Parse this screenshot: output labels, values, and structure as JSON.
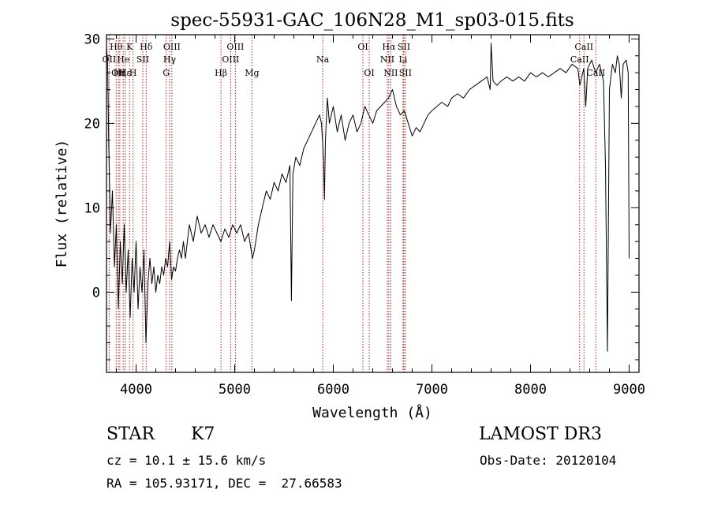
{
  "chart_data": {
    "type": "line",
    "title": "spec-55931-GAC_106N28_M1_sp03-015.fits",
    "xlabel": "Wavelength (Å)",
    "ylabel": "Flux (relative)",
    "xlim": [
      3700,
      9100
    ],
    "ylim": [
      -9.5,
      30.5
    ],
    "x_ticks": [
      4000,
      5000,
      6000,
      7000,
      8000,
      9000
    ],
    "y_ticks": [
      0,
      10,
      20,
      30
    ],
    "grid": false,
    "series": [
      {
        "name": "flux",
        "points": [
          [
            3700,
            29.0
          ],
          [
            3712,
            27.0
          ],
          [
            3722,
            18.0
          ],
          [
            3740,
            7.0
          ],
          [
            3760,
            12.0
          ],
          [
            3780,
            3.0
          ],
          [
            3800,
            8.0
          ],
          [
            3820,
            -2.0
          ],
          [
            3840,
            6.0
          ],
          [
            3860,
            1.0
          ],
          [
            3880,
            8.0
          ],
          [
            3900,
            0.0
          ],
          [
            3920,
            5.0
          ],
          [
            3940,
            -3.0
          ],
          [
            3960,
            4.0
          ],
          [
            3980,
            0.0
          ],
          [
            4000,
            6.0
          ],
          [
            4020,
            -2.0
          ],
          [
            4040,
            3.0
          ],
          [
            4060,
            0.0
          ],
          [
            4080,
            5.0
          ],
          [
            4100,
            -6.0
          ],
          [
            4120,
            1.0
          ],
          [
            4140,
            4.0
          ],
          [
            4160,
            1.0
          ],
          [
            4180,
            3.0
          ],
          [
            4200,
            0.0
          ],
          [
            4220,
            2.0
          ],
          [
            4240,
            1.0
          ],
          [
            4260,
            3.0
          ],
          [
            4280,
            2.0
          ],
          [
            4300,
            4.0
          ],
          [
            4320,
            3.0
          ],
          [
            4340,
            6.0
          ],
          [
            4360,
            1.5
          ],
          [
            4380,
            3.0
          ],
          [
            4400,
            2.5
          ],
          [
            4420,
            4.0
          ],
          [
            4440,
            5.0
          ],
          [
            4460,
            4.0
          ],
          [
            4480,
            6.0
          ],
          [
            4500,
            4.0
          ],
          [
            4540,
            8.0
          ],
          [
            4580,
            6.0
          ],
          [
            4620,
            9.0
          ],
          [
            4660,
            7.0
          ],
          [
            4700,
            8.0
          ],
          [
            4740,
            6.5
          ],
          [
            4780,
            8.0
          ],
          [
            4820,
            7.0
          ],
          [
            4860,
            6.0
          ],
          [
            4900,
            7.5
          ],
          [
            4940,
            6.5
          ],
          [
            4980,
            8.0
          ],
          [
            5020,
            7.0
          ],
          [
            5060,
            8.0
          ],
          [
            5100,
            6.0
          ],
          [
            5140,
            7.0
          ],
          [
            5180,
            4.0
          ],
          [
            5200,
            5.0
          ],
          [
            5240,
            8.0
          ],
          [
            5280,
            10.0
          ],
          [
            5320,
            12.0
          ],
          [
            5360,
            11.0
          ],
          [
            5400,
            13.0
          ],
          [
            5440,
            12.0
          ],
          [
            5480,
            14.0
          ],
          [
            5520,
            13.0
          ],
          [
            5560,
            15.0
          ],
          [
            5575,
            -1.0
          ],
          [
            5590,
            14.0
          ],
          [
            5620,
            16.0
          ],
          [
            5660,
            15.0
          ],
          [
            5700,
            17.0
          ],
          [
            5740,
            18.0
          ],
          [
            5780,
            19.0
          ],
          [
            5820,
            20.0
          ],
          [
            5860,
            21.0
          ],
          [
            5880,
            20.0
          ],
          [
            5900,
            16.0
          ],
          [
            5910,
            11.0
          ],
          [
            5920,
            18.0
          ],
          [
            5940,
            23.0
          ],
          [
            5960,
            20.0
          ],
          [
            6000,
            22.0
          ],
          [
            6040,
            19.0
          ],
          [
            6080,
            21.0
          ],
          [
            6120,
            18.0
          ],
          [
            6160,
            20.0
          ],
          [
            6200,
            21.0
          ],
          [
            6240,
            19.0
          ],
          [
            6280,
            20.0
          ],
          [
            6320,
            22.0
          ],
          [
            6360,
            21.0
          ],
          [
            6400,
            20.0
          ],
          [
            6440,
            21.5
          ],
          [
            6480,
            22.0
          ],
          [
            6520,
            22.5
          ],
          [
            6560,
            23.0
          ],
          [
            6600,
            24.0
          ],
          [
            6640,
            22.0
          ],
          [
            6680,
            21.0
          ],
          [
            6720,
            21.5
          ],
          [
            6760,
            20.0
          ],
          [
            6800,
            18.5
          ],
          [
            6840,
            19.5
          ],
          [
            6880,
            19.0
          ],
          [
            6920,
            20.0
          ],
          [
            6960,
            21.0
          ],
          [
            7000,
            21.5
          ],
          [
            7050,
            22.0
          ],
          [
            7100,
            22.5
          ],
          [
            7160,
            22.0
          ],
          [
            7200,
            23.0
          ],
          [
            7260,
            23.5
          ],
          [
            7320,
            23.0
          ],
          [
            7380,
            24.0
          ],
          [
            7440,
            24.5
          ],
          [
            7500,
            25.0
          ],
          [
            7560,
            25.5
          ],
          [
            7590,
            24.0
          ],
          [
            7600,
            29.5
          ],
          [
            7620,
            25.0
          ],
          [
            7660,
            24.5
          ],
          [
            7700,
            25.0
          ],
          [
            7760,
            25.5
          ],
          [
            7820,
            25.0
          ],
          [
            7880,
            25.5
          ],
          [
            7940,
            25.0
          ],
          [
            8000,
            26.0
          ],
          [
            8060,
            25.5
          ],
          [
            8120,
            26.0
          ],
          [
            8180,
            25.5
          ],
          [
            8240,
            26.0
          ],
          [
            8300,
            26.5
          ],
          [
            8360,
            26.0
          ],
          [
            8420,
            27.0
          ],
          [
            8480,
            26.5
          ],
          [
            8500,
            24.5
          ],
          [
            8540,
            26.5
          ],
          [
            8560,
            22.0
          ],
          [
            8580,
            26.5
          ],
          [
            8620,
            27.5
          ],
          [
            8660,
            26.0
          ],
          [
            8700,
            27.0
          ],
          [
            8740,
            25.0
          ],
          [
            8760,
            15.0
          ],
          [
            8780,
            -7.0
          ],
          [
            8800,
            24.0
          ],
          [
            8830,
            27.0
          ],
          [
            8860,
            26.0
          ],
          [
            8880,
            28.0
          ],
          [
            8900,
            27.0
          ],
          [
            8920,
            23.0
          ],
          [
            8940,
            27.0
          ],
          [
            8970,
            27.5
          ],
          [
            8990,
            26.0
          ],
          [
            9000,
            4.0
          ]
        ]
      }
    ],
    "line_markers": [
      {
        "wavelength": 3727,
        "label": "OII",
        "row": 2
      },
      {
        "wavelength": 3798,
        "label": "Hθ",
        "row": 1
      },
      {
        "wavelength": 3820,
        "label": "OII",
        "row": 3
      },
      {
        "wavelength": 3835,
        "label": "Hη",
        "row": 3
      },
      {
        "wavelength": 3869,
        "label": "He",
        "row": 2
      },
      {
        "wavelength": 3889,
        "label": "Hε",
        "row": 3
      },
      {
        "wavelength": 3934,
        "label": "K",
        "row": 1
      },
      {
        "wavelength": 3969,
        "label": "H",
        "row": 3
      },
      {
        "wavelength": 4068,
        "label": "SII",
        "row": 2
      },
      {
        "wavelength": 4102,
        "label": "Hδ",
        "row": 1
      },
      {
        "wavelength": 4305,
        "label": "G",
        "row": 3
      },
      {
        "wavelength": 4340,
        "label": "Hγ",
        "row": 2
      },
      {
        "wavelength": 4363,
        "label": "OIII",
        "row": 1
      },
      {
        "wavelength": 4861,
        "label": "Hβ",
        "row": 3
      },
      {
        "wavelength": 4959,
        "label": "OIII",
        "row": 2
      },
      {
        "wavelength": 5007,
        "label": "OIII",
        "row": 1
      },
      {
        "wavelength": 5175,
        "label": "Mg",
        "row": 3
      },
      {
        "wavelength": 5893,
        "label": "Na",
        "row": 2
      },
      {
        "wavelength": 6300,
        "label": "OI",
        "row": 1
      },
      {
        "wavelength": 6364,
        "label": "OI",
        "row": 3
      },
      {
        "wavelength": 6548,
        "label": "NII",
        "row": 2
      },
      {
        "wavelength": 6563,
        "label": "Hα",
        "row": 1
      },
      {
        "wavelength": 6583,
        "label": "NII",
        "row": 3
      },
      {
        "wavelength": 6707,
        "label": "Li",
        "row": 2
      },
      {
        "wavelength": 6716,
        "label": "SII",
        "row": 1
      },
      {
        "wavelength": 6731,
        "label": "SII",
        "row": 3
      },
      {
        "wavelength": 8498,
        "label": "CaII",
        "row": 2
      },
      {
        "wavelength": 8542,
        "label": "CaII",
        "row": 1
      },
      {
        "wavelength": 8662,
        "label": "CaII",
        "row": 3
      }
    ]
  },
  "info": {
    "object_class": "STAR",
    "subclass": "K7",
    "survey": "LAMOST DR3",
    "cz": "cz = 10.1 ± 15.6 km/s",
    "obs_date": "Obs-Date: 20120104",
    "coords": "RA = 105.93171, DEC =  27.66583"
  },
  "colors": {
    "line": "#000000",
    "marker": "#b22222",
    "axis": "#000000"
  }
}
